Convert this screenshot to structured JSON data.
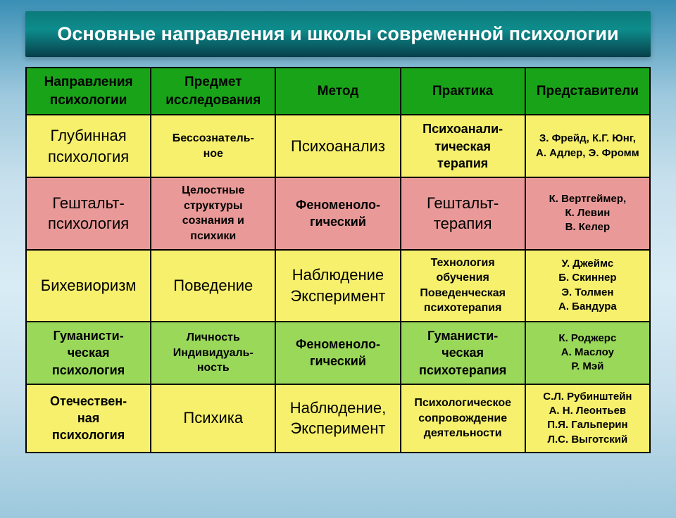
{
  "title": "Основные направления и школы современной психологии",
  "colors": {
    "header_bg": "#19a319",
    "row_yellow": "#f6f06c",
    "row_pink": "#e99a98",
    "row_green": "#9ad85a",
    "title_gradient_top": "#0b7a7a",
    "title_gradient_bot": "#063f4a",
    "body_sky_top": "#3a8fb5",
    "body_sky_mid": "#d8ecf5"
  },
  "columns": [
    "Направления\nпсихологии",
    "Предмет\nисследования",
    "Метод",
    "Практика",
    "Представители"
  ],
  "rows": [
    {
      "bg": "row-yellow",
      "direction": "Глубинная\nпсихология",
      "subject": "Бессознатель-\nное",
      "method": "Психоанализ",
      "practice": "Психоанали-\nтическая\nтерапия",
      "reps": "З. Фрейд, К.Г. Юнг,\nА. Адлер, Э. Фромм"
    },
    {
      "bg": "row-pink",
      "direction": "Гештальт-\nпсихология",
      "subject": "Целостные\nструктуры\nсознания и\nпсихики",
      "method": "Феноменоло-\nгический",
      "practice": "Гештальт-\nтерапия",
      "reps": "К. Вертгеймер,\nК. Левин\nВ. Келер"
    },
    {
      "bg": "row-yellow",
      "direction": "Бихевиоризм",
      "subject": "Поведение",
      "method": "Наблюдение\nЭксперимент",
      "practice": "Технология\nобучения\nПоведенческая\nпсихотерапия",
      "reps": "У. Джеймс\nБ. Скиннер\nЭ. Толмен\nА. Бандура"
    },
    {
      "bg": "row-green",
      "direction": "Гуманисти-\nческая\nпсихология",
      "subject": "Личность\nИндивидуаль-\nность",
      "method": "Феноменоло-\nгический",
      "practice": "Гуманисти-\nческая\nпсихотерапия",
      "reps": "К. Роджерс\nА. Маслоу\nР. Мэй"
    },
    {
      "bg": "row-yellow",
      "direction": "Отечествен-\nная\nпсихология",
      "subject": "Психика",
      "method": "Наблюдение,\nЭксперимент",
      "practice": "Психологическое\nсопровождение\nдеятельности",
      "reps": "С.Л. Рубинштейн\nА. Н. Леонтьев\nП.Я. Гальперин\nЛ.С. Выготский"
    }
  ]
}
